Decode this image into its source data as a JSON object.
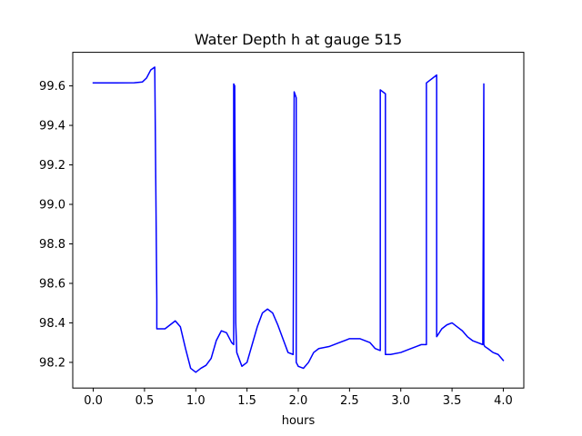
{
  "chart_data": {
    "type": "line",
    "title": "Water Depth h at gauge 515",
    "xlabel": "hours",
    "ylabel": "",
    "xlim": [
      -0.2,
      4.2
    ],
    "ylim": [
      98.07,
      99.77
    ],
    "xticks": [
      0.0,
      0.5,
      1.0,
      1.5,
      2.0,
      2.5,
      3.0,
      3.5,
      4.0
    ],
    "xtick_labels": [
      "0.0",
      "0.5",
      "1.0",
      "1.5",
      "2.0",
      "2.5",
      "3.0",
      "3.5",
      "4.0"
    ],
    "yticks": [
      98.2,
      98.4,
      98.6,
      98.8,
      99.0,
      99.2,
      99.4,
      99.6
    ],
    "ytick_labels": [
      "98.2",
      "98.4",
      "98.6",
      "98.8",
      "99.0",
      "99.2",
      "99.4",
      "99.6"
    ],
    "grid": false,
    "legend": "none",
    "series": [
      {
        "color": "#0000ff",
        "x": [
          0.0,
          0.2,
          0.4,
          0.48,
          0.52,
          0.56,
          0.6,
          0.62,
          0.62,
          0.7,
          0.75,
          0.8,
          0.85,
          0.9,
          0.95,
          1.0,
          1.05,
          1.1,
          1.15,
          1.2,
          1.25,
          1.3,
          1.35,
          1.37,
          1.37,
          1.38,
          1.39,
          1.4,
          1.45,
          1.5,
          1.55,
          1.6,
          1.65,
          1.7,
          1.75,
          1.8,
          1.85,
          1.9,
          1.95,
          1.96,
          1.96,
          1.98,
          1.98,
          2.0,
          2.05,
          2.1,
          2.15,
          2.2,
          2.3,
          2.4,
          2.5,
          2.6,
          2.7,
          2.75,
          2.8,
          2.8,
          2.85,
          2.85,
          2.9,
          3.0,
          3.1,
          3.15,
          3.2,
          3.25,
          3.25,
          3.35,
          3.35,
          3.4,
          3.45,
          3.5,
          3.55,
          3.6,
          3.65,
          3.7,
          3.75,
          3.8,
          3.81,
          3.81,
          3.82,
          3.85,
          3.9,
          3.95,
          4.0
        ],
        "y": [
          99.615,
          99.615,
          99.616,
          99.62,
          99.64,
          99.68,
          99.695,
          98.52,
          98.37,
          98.37,
          98.39,
          98.41,
          98.38,
          98.27,
          98.17,
          98.15,
          98.17,
          98.185,
          98.22,
          98.31,
          98.36,
          98.35,
          98.3,
          98.29,
          99.61,
          99.6,
          98.4,
          98.25,
          98.18,
          98.2,
          98.29,
          98.38,
          98.45,
          98.47,
          98.45,
          98.39,
          98.32,
          98.25,
          98.24,
          99.57,
          99.57,
          99.54,
          98.2,
          98.18,
          98.17,
          98.2,
          98.25,
          98.27,
          98.28,
          98.3,
          98.32,
          98.32,
          98.3,
          98.27,
          98.26,
          99.58,
          99.56,
          98.24,
          98.24,
          98.25,
          98.27,
          98.28,
          98.29,
          98.29,
          99.615,
          99.655,
          98.33,
          98.37,
          98.39,
          98.4,
          98.38,
          98.36,
          98.33,
          98.31,
          98.3,
          98.29,
          99.61,
          98.29,
          98.28,
          98.27,
          98.25,
          98.24,
          98.21
        ]
      }
    ]
  }
}
